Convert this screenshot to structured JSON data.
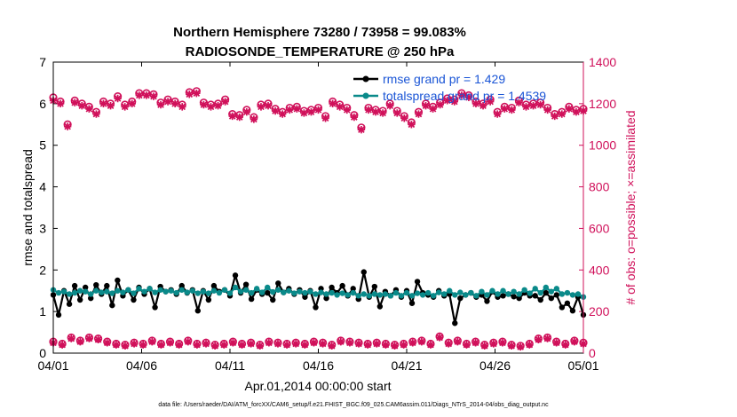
{
  "chart_data": {
    "type": "line",
    "title": "Northern Hemisphere 73280 / 73958 = 99.083%",
    "subtitle": "RADIOSONDE_TEMPERATURE @ 250 hPa",
    "xlabel": "Apr.01,2014 00:00:00 start",
    "ylabel_left": "rmse and totalspread",
    "ylabel_right": "# of obs: o=possible; ×=assimilated",
    "footnote": "data file: /Users/raeder/DAI/ATM_forcXX/CAM6_setup/f.e21.FHIST_BGC.f09_025.CAM6assim.011/Diags_NTrS_2014-04/obs_diag_output.nc",
    "xlim": [
      0,
      30
    ],
    "ylim_left": [
      0,
      7
    ],
    "ylim_right": [
      0,
      1400
    ],
    "x_ticks": [
      0,
      5,
      10,
      15,
      20,
      25,
      30
    ],
    "x_tick_labels": [
      "04/01",
      "04/06",
      "04/11",
      "04/16",
      "04/21",
      "04/26",
      "05/01"
    ],
    "y_left_ticks": [
      "0",
      "1",
      "2",
      "3",
      "4",
      "5",
      "6",
      "7"
    ],
    "y_right_ticks": [
      "0",
      "200",
      "400",
      "600",
      "800",
      "1000",
      "1200",
      "1400"
    ],
    "colors": {
      "rmse": "#000000",
      "totalspread": "#0a8a8a",
      "obs": "#d0105a",
      "legend_text": "#1a55d6"
    },
    "legend_position": "top-right",
    "series": [
      {
        "name": "rmse grand pr = 1.429",
        "axis": "left",
        "values": [
          1.4,
          0.92,
          1.5,
          1.18,
          1.62,
          1.28,
          1.58,
          1.32,
          1.64,
          1.42,
          1.62,
          1.15,
          1.75,
          1.38,
          1.52,
          1.28,
          1.58,
          1.42,
          1.55,
          1.1,
          1.6,
          1.48,
          1.52,
          1.42,
          1.62,
          1.45,
          1.52,
          1.02,
          1.5,
          1.28,
          1.62,
          1.48,
          1.52,
          1.38,
          1.87,
          1.45,
          1.65,
          1.3,
          1.52,
          1.42,
          1.45,
          1.28,
          1.68,
          1.46,
          1.55,
          1.42,
          1.52,
          1.35,
          1.5,
          1.1,
          1.55,
          1.32,
          1.58,
          1.45,
          1.62,
          1.38,
          1.55,
          1.3,
          1.95,
          1.35,
          1.6,
          1.12,
          1.48,
          1.38,
          1.52,
          1.35,
          1.5,
          1.2,
          1.72,
          1.45,
          1.4,
          1.35,
          1.5,
          1.38,
          1.42,
          0.72,
          1.32,
          1.4,
          1.45,
          1.35,
          1.4,
          1.25,
          1.48,
          1.35,
          1.38,
          1.42,
          1.36,
          1.32,
          1.45,
          1.38,
          1.38,
          1.28,
          1.45,
          1.32,
          1.4,
          1.1,
          1.2,
          1.02,
          1.35,
          0.92
        ]
      },
      {
        "name": "totalspread grand pr = 1.4539",
        "axis": "left",
        "values": [
          1.52,
          1.45,
          1.48,
          1.42,
          1.45,
          1.5,
          1.48,
          1.42,
          1.5,
          1.46,
          1.48,
          1.44,
          1.5,
          1.46,
          1.52,
          1.44,
          1.55,
          1.48,
          1.55,
          1.46,
          1.52,
          1.48,
          1.5,
          1.45,
          1.52,
          1.46,
          1.5,
          1.44,
          1.48,
          1.44,
          1.5,
          1.45,
          1.52,
          1.44,
          1.58,
          1.48,
          1.52,
          1.45,
          1.55,
          1.46,
          1.58,
          1.47,
          1.52,
          1.46,
          1.5,
          1.44,
          1.48,
          1.45,
          1.48,
          1.42,
          1.46,
          1.42,
          1.45,
          1.4,
          1.44,
          1.4,
          1.45,
          1.38,
          1.42,
          1.38,
          1.42,
          1.4,
          1.42,
          1.38,
          1.45,
          1.38,
          1.45,
          1.38,
          1.44,
          1.4,
          1.45,
          1.38,
          1.46,
          1.42,
          1.5,
          1.4,
          1.46,
          1.4,
          1.45,
          1.38,
          1.48,
          1.4,
          1.5,
          1.42,
          1.5,
          1.42,
          1.48,
          1.42,
          1.52,
          1.44,
          1.55,
          1.45,
          1.58,
          1.48,
          1.55,
          1.42,
          1.45,
          1.4,
          1.42,
          1.35
        ]
      },
      {
        "name": "possible",
        "axis": "right",
        "marker": "o",
        "values": [
          1230,
          1210,
          1100,
          1215,
          1200,
          1185,
          1160,
          1210,
          1200,
          1235,
          1195,
          1210,
          1250,
          1250,
          1245,
          1205,
          1220,
          1210,
          1195,
          1255,
          1260,
          1205,
          1195,
          1200,
          1220,
          1150,
          1145,
          1170,
          1135,
          1195,
          1200,
          1175,
          1160,
          1180,
          1185,
          1165,
          1170,
          1180,
          1140,
          1210,
          1195,
          1180,
          1145,
          1085,
          1180,
          1170,
          1165,
          1200,
          1165,
          1140,
          1110,
          1160,
          1200,
          1185,
          1205,
          1225,
          1220,
          1250,
          1240,
          1210,
          1200,
          1220,
          1160,
          1185,
          1180,
          1215,
          1195,
          1200,
          1205,
          1180,
          1150,
          1160,
          1185,
          1170,
          1175
        ]
      },
      {
        "name": "assimilated",
        "axis": "right",
        "marker": "x",
        "values": [
          1215,
          1200,
          1090,
          1205,
          1190,
          1175,
          1150,
          1200,
          1190,
          1225,
          1185,
          1200,
          1240,
          1240,
          1235,
          1195,
          1210,
          1200,
          1185,
          1245,
          1250,
          1195,
          1185,
          1190,
          1210,
          1140,
          1135,
          1160,
          1125,
          1185,
          1190,
          1165,
          1150,
          1170,
          1175,
          1155,
          1160,
          1170,
          1130,
          1200,
          1185,
          1170,
          1135,
          1075,
          1170,
          1160,
          1155,
          1190,
          1155,
          1130,
          1100,
          1150,
          1190,
          1175,
          1195,
          1215,
          1210,
          1240,
          1230,
          1200,
          1190,
          1210,
          1150,
          1175,
          1170,
          1205,
          1185,
          1190,
          1195,
          1170,
          1140,
          1150,
          1175,
          1160,
          1165
        ]
      },
      {
        "name": "possible-low",
        "axis": "right",
        "marker": "o",
        "values": [
          55,
          45,
          75,
          60,
          75,
          70,
          55,
          45,
          40,
          50,
          45,
          60,
          45,
          55,
          45,
          60,
          45,
          50,
          40,
          45,
          55,
          45,
          50,
          40,
          55,
          50,
          45,
          50,
          45,
          55,
          50,
          40,
          60,
          55,
          50,
          45,
          50,
          45,
          40,
          45,
          55,
          60,
          45,
          80,
          50,
          60,
          45,
          55,
          40,
          50,
          55,
          40,
          35,
          45,
          70,
          75,
          55,
          45,
          60,
          50
        ]
      },
      {
        "name": "assimilated-low",
        "axis": "right",
        "marker": "x",
        "values": [
          50,
          40,
          70,
          55,
          70,
          65,
          50,
          40,
          35,
          45,
          40,
          55,
          40,
          50,
          40,
          55,
          40,
          45,
          35,
          40,
          50,
          40,
          45,
          35,
          50,
          45,
          40,
          45,
          40,
          50,
          45,
          35,
          55,
          50,
          45,
          40,
          45,
          40,
          35,
          40,
          50,
          55,
          40,
          75,
          45,
          55,
          40,
          50,
          35,
          45,
          50,
          35,
          30,
          40,
          65,
          70,
          50,
          40,
          55,
          45
        ]
      }
    ]
  }
}
